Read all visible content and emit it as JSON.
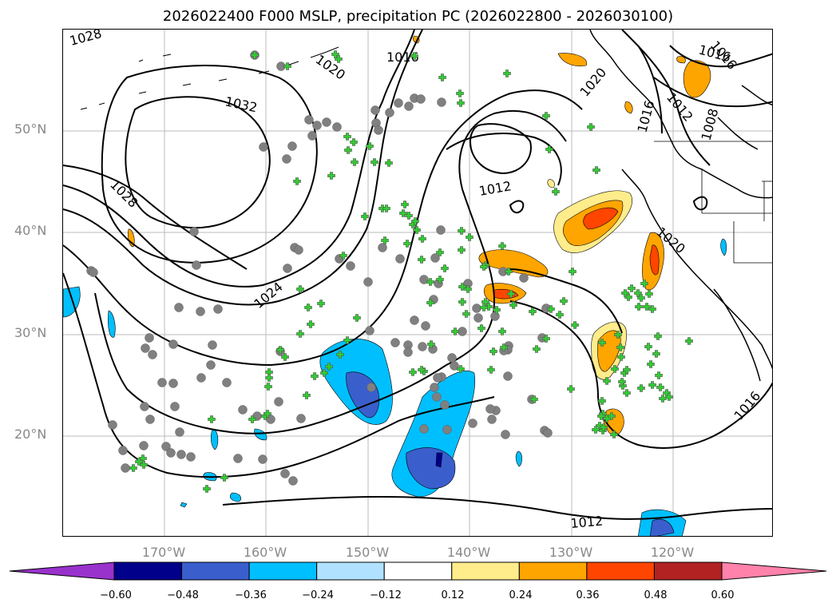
{
  "title": "2026022400 F000 MSLP, precipitation PC (2026022800 - 2026030100)",
  "lat_labels": [
    "50°N",
    "40°N",
    "30°N",
    "20°N"
  ],
  "lon_labels": [
    "170°W",
    "160°W",
    "150°W",
    "140°W",
    "130°W",
    "120°W"
  ],
  "contour_labels": [
    "1028",
    "1020",
    "1016",
    "1032",
    "1028",
    "1024",
    "1012",
    "1020",
    "1016",
    "1012",
    "1008",
    "1016",
    "1020",
    "1016",
    "1012",
    "1016"
  ],
  "colorbar": {
    "ticks": [
      "−0.60",
      "−0.48",
      "−0.36",
      "−0.24",
      "−0.12",
      "0.12",
      "0.24",
      "0.36",
      "0.48",
      "0.60"
    ],
    "colors": [
      "#9932cc",
      "#00008b",
      "#3a5fcd",
      "#00bfff",
      "#b0e2ff",
      "#ffffff",
      "#ffec8b",
      "#ffa500",
      "#ff4500",
      "#b22222",
      "#ff82ab"
    ]
  },
  "colors": {
    "station_marker": "#32cd32",
    "station_ring": "#808080",
    "grid": "#bbbbbb"
  }
}
